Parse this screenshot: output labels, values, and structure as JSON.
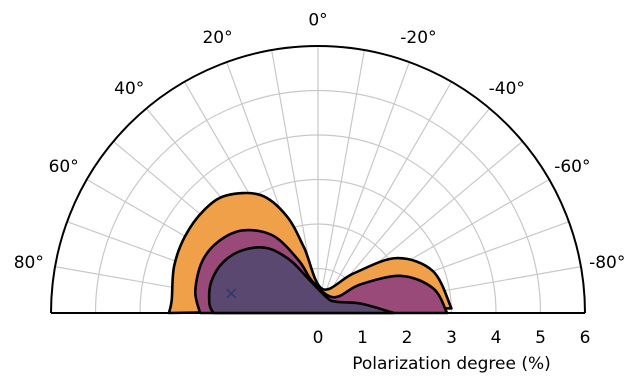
{
  "chart_data": {
    "type": "polar-contour",
    "xlabel": "Polarization degree (%)",
    "radial_ticks": [
      "0",
      "1",
      "2",
      "3",
      "4",
      "5",
      "6"
    ],
    "radial_range": [
      0,
      6
    ],
    "angular_range_deg": [
      -90,
      90
    ],
    "angular_tick_labels": [
      {
        "deg": 0,
        "text": "0°"
      },
      {
        "deg": 20,
        "text": "20°"
      },
      {
        "deg": -20,
        "text": "-20°"
      },
      {
        "deg": 40,
        "text": "40°"
      },
      {
        "deg": -40,
        "text": "-40°"
      },
      {
        "deg": 60,
        "text": "60°"
      },
      {
        "deg": -60,
        "text": "-60°"
      },
      {
        "deg": 80,
        "text": "80°"
      },
      {
        "deg": -80,
        "text": "-80°"
      }
    ],
    "angular_gridline_step_deg": 10,
    "radial_gridline_step": 1,
    "grid": true,
    "marker": {
      "symbol": "×",
      "polarization_pct": 2.0,
      "angle_deg": 77,
      "color": "#2e3a6e"
    },
    "contours": [
      {
        "level": "outer",
        "color": "#f0a048",
        "points": [
          [
            3.0,
            -88
          ],
          [
            2.75,
            -70
          ],
          [
            2.15,
            -55
          ],
          [
            1.2,
            -42
          ],
          [
            0.55,
            -10
          ],
          [
            1.5,
            12
          ],
          [
            2.3,
            18
          ],
          [
            2.95,
            26
          ],
          [
            3.35,
            38
          ],
          [
            3.45,
            48
          ],
          [
            3.45,
            60
          ],
          [
            3.4,
            72
          ],
          [
            3.3,
            85
          ],
          [
            3.35,
            90
          ]
        ]
      },
      {
        "level": "middle",
        "color": "#9a4a78",
        "points": [
          [
            2.9,
            -90
          ],
          [
            2.65,
            -78
          ],
          [
            2.05,
            -66
          ],
          [
            1.15,
            -56
          ],
          [
            0.5,
            -45
          ],
          [
            0.72,
            10
          ],
          [
            1.25,
            20
          ],
          [
            2.0,
            30
          ],
          [
            2.5,
            42
          ],
          [
            2.75,
            54
          ],
          [
            2.85,
            66
          ],
          [
            2.8,
            80
          ],
          [
            2.65,
            90
          ]
        ]
      },
      {
        "level": "inner",
        "color": "#5a4870",
        "points": [
          [
            1.7,
            -90
          ],
          [
            1.0,
            -78
          ],
          [
            0.48,
            -58
          ],
          [
            0.4,
            -30
          ],
          [
            0.78,
            15
          ],
          [
            1.35,
            28
          ],
          [
            1.85,
            38
          ],
          [
            2.2,
            50
          ],
          [
            2.42,
            62
          ],
          [
            2.5,
            74
          ],
          [
            2.45,
            85
          ],
          [
            2.35,
            90
          ]
        ]
      }
    ]
  }
}
